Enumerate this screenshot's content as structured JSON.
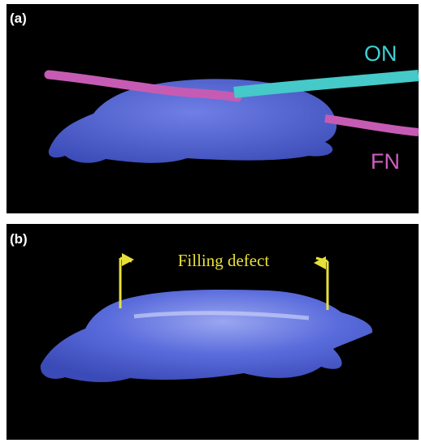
{
  "panels": [
    {
      "label": "(a)",
      "annotations": [
        "ON",
        "FN"
      ]
    },
    {
      "label": "(b)",
      "annotations": [
        "Filling defect"
      ]
    }
  ]
}
